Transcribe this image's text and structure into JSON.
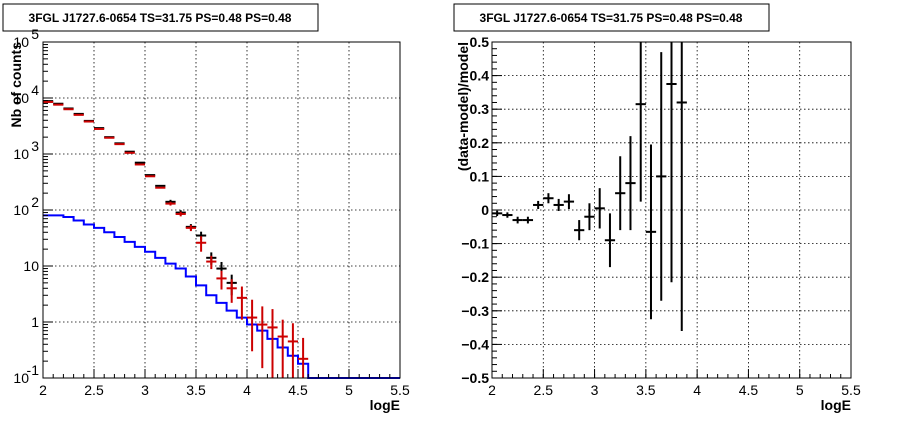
{
  "chart_data": [
    {
      "type": "line",
      "title": "3FGL J1727.6-0654 TS=31.75 PS=0.48 PS=0.48",
      "xlabel": "logE",
      "ylabel": "Nb of counts",
      "xlim": [
        2,
        5.5
      ],
      "ylim": [
        0.1,
        100000
      ],
      "yscale": "log",
      "grid": true,
      "x_ticks": [
        "2",
        "2.5",
        "3",
        "3.5",
        "4",
        "4.5",
        "5",
        "5.5"
      ],
      "y_ticks": [
        {
          "value": 0.1,
          "label": "10",
          "sup": "-1"
        },
        {
          "value": 1,
          "label": "1",
          "sup": ""
        },
        {
          "value": 10,
          "label": "10",
          "sup": ""
        },
        {
          "value": 100,
          "label": "10",
          "sup": "2"
        },
        {
          "value": 1000,
          "label": "10",
          "sup": "3"
        },
        {
          "value": 10000,
          "label": "10",
          "sup": "4"
        },
        {
          "value": 100000,
          "label": "10",
          "sup": "5"
        }
      ],
      "bin_edges": [
        2.0,
        2.1,
        2.2,
        2.3,
        2.4,
        2.5,
        2.6,
        2.7,
        2.8,
        2.9,
        3.0,
        3.1,
        3.2,
        3.3,
        3.4,
        3.5,
        3.6,
        3.7,
        3.8,
        3.9,
        4.0,
        4.1,
        4.2,
        4.3,
        4.4,
        4.5,
        4.6,
        4.7,
        4.8,
        4.9,
        5.0,
        5.1,
        5.2,
        5.3,
        5.4,
        5.5
      ],
      "series": [
        {
          "color": "#0000ff",
          "style": "step",
          "values": [
            80,
            80,
            75,
            65,
            55,
            48,
            40,
            33,
            27,
            22,
            18,
            14,
            11,
            9,
            6.5,
            4.5,
            3.0,
            2.2,
            1.6,
            1.2,
            0.9,
            0.7,
            0.5,
            0.35,
            0.25,
            0.18,
            0.1,
            0.1,
            0.1,
            0.1,
            0.1,
            0.1,
            0.1,
            0.1,
            0.1
          ]
        },
        {
          "color": "#000000",
          "style": "errorbar",
          "x": [
            2.05,
            2.15,
            2.25,
            2.35,
            2.45,
            2.55,
            2.65,
            2.75,
            2.85,
            2.95,
            3.05,
            3.15,
            3.25,
            3.35,
            3.45,
            3.55,
            3.65,
            3.75,
            3.85
          ],
          "y": [
            8800,
            7900,
            6500,
            5200,
            3900,
            2900,
            2000,
            1550,
            1100,
            700,
            420,
            270,
            140,
            90,
            50,
            35,
            14,
            9,
            5
          ],
          "err_low": [
            0,
            0,
            0,
            0,
            0,
            0,
            0,
            0,
            0,
            0,
            0,
            0,
            12,
            9,
            6,
            6,
            3.5,
            2.8,
            2
          ],
          "err_high": [
            0,
            0,
            0,
            0,
            0,
            0,
            0,
            0,
            0,
            0,
            0,
            0,
            12,
            9,
            6,
            6,
            3.5,
            2.8,
            2
          ]
        },
        {
          "color": "#cc0000",
          "style": "errorbar",
          "x": [
            2.05,
            2.15,
            2.25,
            2.35,
            2.45,
            2.55,
            2.65,
            2.75,
            2.85,
            2.95,
            3.05,
            3.15,
            3.25,
            3.35,
            3.45,
            3.55,
            3.65,
            3.75,
            3.85,
            3.95,
            4.05,
            4.15,
            4.25,
            4.35,
            4.45,
            4.55
          ],
          "y": [
            8500,
            7600,
            6300,
            5000,
            3800,
            2800,
            1950,
            1500,
            1050,
            650,
            400,
            250,
            130,
            85,
            48,
            26,
            12,
            6,
            4,
            2.7,
            1.2,
            0.9,
            0.8,
            0.55,
            0.45,
            0.22
          ],
          "err_low": [
            0,
            0,
            0,
            0,
            0,
            0,
            0,
            0,
            0,
            0,
            0,
            0,
            10,
            8,
            6,
            8,
            3.2,
            2.2,
            1.8,
            1.6,
            0.9,
            0.75,
            0.7,
            0.45,
            0.35,
            0.12
          ],
          "err_high": [
            0,
            0,
            0,
            0,
            0,
            0,
            0,
            0,
            0,
            0,
            0,
            0,
            10,
            8,
            6,
            8,
            3.2,
            2.2,
            1.8,
            1.6,
            1.3,
            1.0,
            0.9,
            0.55,
            0.5,
            0.3
          ]
        }
      ]
    },
    {
      "type": "scatter",
      "title": "3FGL J1727.6-0654 TS=31.75 PS=0.48 PS=0.48",
      "xlabel": "logE",
      "ylabel": "(data-model)/model",
      "xlim": [
        2,
        5.5
      ],
      "ylim": [
        -0.5,
        0.5
      ],
      "grid": true,
      "x_ticks": [
        "2",
        "2.5",
        "3",
        "3.5",
        "4",
        "4.5",
        "5",
        "5.5"
      ],
      "y_ticks": [
        "−0.5",
        "−0.4",
        "−0.3",
        "−0.2",
        "−0.1",
        "0",
        "0.1",
        "0.2",
        "0.3",
        "0.4",
        "0.5"
      ],
      "series": [
        {
          "color": "#000000",
          "style": "errorbar",
          "x": [
            2.05,
            2.15,
            2.25,
            2.35,
            2.45,
            2.55,
            2.65,
            2.75,
            2.85,
            2.95,
            3.05,
            3.15,
            3.25,
            3.35,
            3.45,
            3.55,
            3.65,
            3.75,
            3.85
          ],
          "y": [
            -0.01,
            -0.015,
            -0.03,
            -0.03,
            0.015,
            0.035,
            0.015,
            0.025,
            -0.06,
            -0.02,
            0.005,
            -0.09,
            0.05,
            0.08,
            0.315,
            -0.065,
            0.1,
            0.375,
            0.32
          ],
          "err": [
            0.008,
            0.008,
            0.01,
            0.01,
            0.012,
            0.015,
            0.018,
            0.022,
            0.03,
            0.04,
            0.06,
            0.08,
            0.11,
            0.14,
            0.29,
            0.26,
            0.37,
            0.59,
            0.68
          ]
        }
      ]
    }
  ]
}
